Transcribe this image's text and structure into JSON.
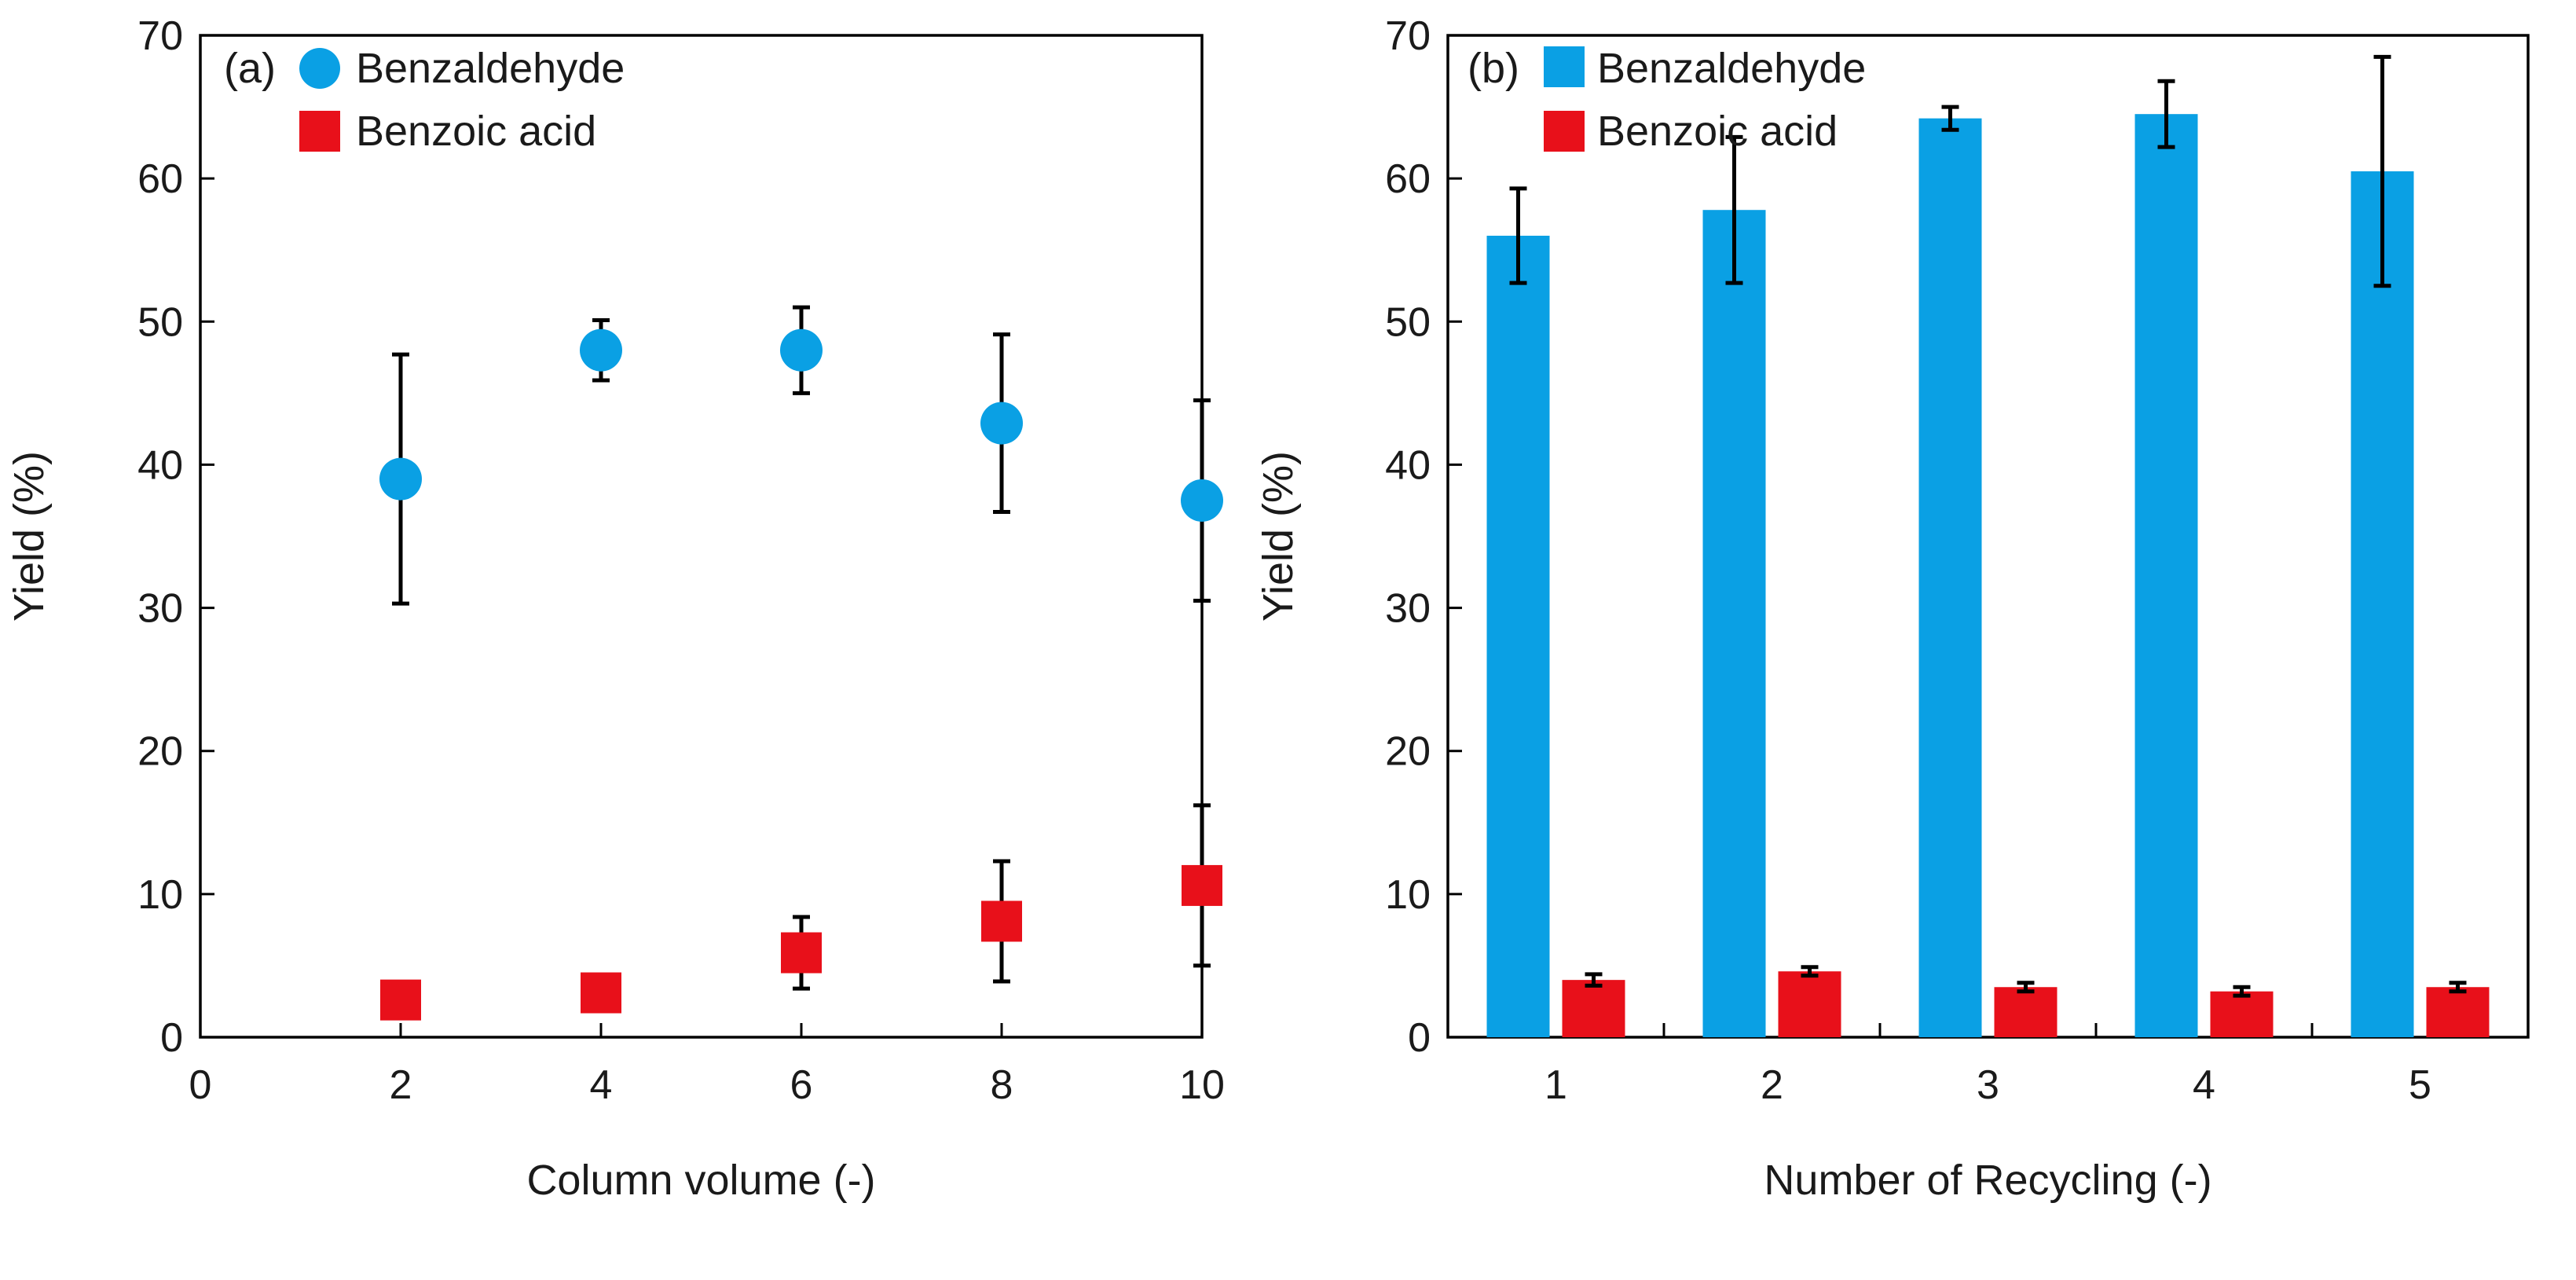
{
  "colors": {
    "benzaldehyde": "#0aa0e4",
    "benzoic_acid": "#e8101a",
    "axis": "#000000",
    "error_bar": "#000000"
  },
  "chart_data": [
    {
      "type": "scatter",
      "panel_label": "(a)",
      "xlabel": "Column volume (-)",
      "ylabel": "Yield (%)",
      "xlim": [
        0,
        10
      ],
      "ylim": [
        0,
        70
      ],
      "xticks": [
        0,
        2,
        4,
        6,
        8,
        10
      ],
      "yticks": [
        0,
        10,
        20,
        30,
        40,
        50,
        60,
        70
      ],
      "grid": false,
      "legend": "top-left",
      "series": [
        {
          "name": "Benzaldehyde",
          "marker": "circle",
          "color": "#0aa0e4",
          "x": [
            2,
            4,
            6,
            8,
            10
          ],
          "y": [
            39.0,
            48.0,
            48.0,
            42.9,
            37.5
          ],
          "err": [
            8.7,
            2.1,
            3.0,
            6.2,
            7.0
          ]
        },
        {
          "name": "Benzoic acid",
          "marker": "square",
          "color": "#e8101a",
          "x": [
            2,
            4,
            6,
            8,
            10
          ],
          "y": [
            2.6,
            3.1,
            5.9,
            8.1,
            10.6
          ],
          "err": [
            0.9,
            1.0,
            2.5,
            4.2,
            5.6
          ]
        }
      ]
    },
    {
      "type": "bar",
      "panel_label": "(b)",
      "xlabel": "Number of Recycling (-)",
      "ylabel": "Yield (%)",
      "categories": [
        "1",
        "2",
        "3",
        "4",
        "5"
      ],
      "ylim": [
        0,
        70
      ],
      "yticks": [
        0,
        10,
        20,
        30,
        40,
        50,
        60,
        70
      ],
      "grid": false,
      "legend": "top-left",
      "series": [
        {
          "name": "Benzaldehyde",
          "color": "#0aa0e4",
          "values": [
            56.0,
            57.8,
            64.2,
            64.5,
            60.5
          ],
          "err": [
            3.3,
            5.1,
            0.8,
            2.3,
            8.0
          ]
        },
        {
          "name": "Benzoic acid",
          "color": "#e8101a",
          "values": [
            4.0,
            4.6,
            3.5,
            3.2,
            3.5
          ],
          "err": [
            0.4,
            0.3,
            0.3,
            0.3,
            0.3
          ]
        }
      ]
    }
  ]
}
